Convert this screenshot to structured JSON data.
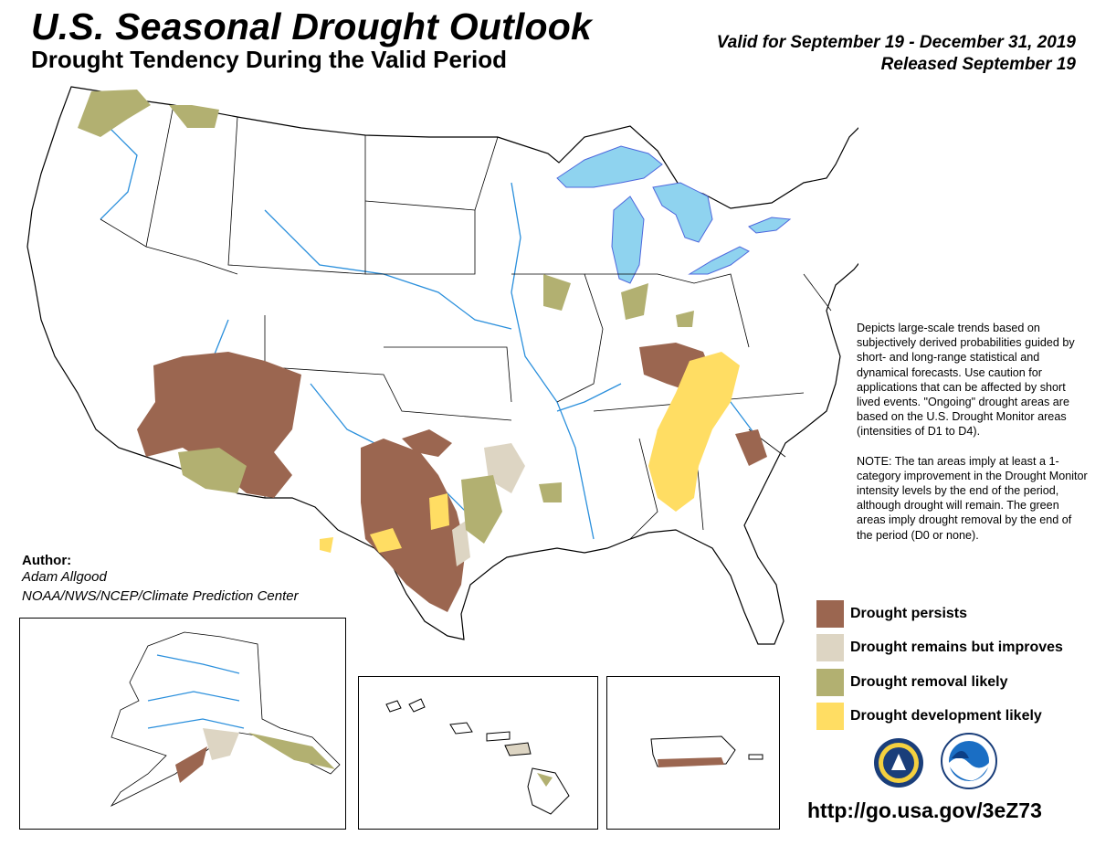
{
  "header": {
    "title": "U.S. Seasonal Drought Outlook",
    "subtitle": "Drought Tendency During the Valid Period",
    "valid": "Valid for September 19 - December 31, 2019",
    "released": "Released September 19"
  },
  "description": {
    "p1": "Depicts large-scale trends based on subjectively derived probabilities guided by short- and long-range statistical and dynamical forecasts. Use caution for applications that can be affected by short lived events. \"Ongoing\" drought areas are based on the U.S. Drought Monitor areas (intensities of D1 to D4).",
    "p2": "NOTE: The tan areas imply at least a 1-category improvement in the Drought Monitor intensity levels by the end of the period, although drought will remain. The green areas imply drought removal by the end of the period (D0 or none)."
  },
  "legend": [
    {
      "label": "Drought persists",
      "color": "#9b6650"
    },
    {
      "label": "Drought remains but improves",
      "color": "#ddd5c3"
    },
    {
      "label": "Drought removal likely",
      "color": "#b2b071"
    },
    {
      "label": "Drought development likely",
      "color": "#ffdd63"
    }
  ],
  "author": {
    "label": "Author:",
    "name": "Adam Allgood",
    "org": "NOAA/NWS/NCEP/Climate Prediction Center"
  },
  "url": "http://go.usa.gov/3eZ73",
  "colors": {
    "water": "#8fd3ef",
    "river": "#2a8fdc",
    "lake": "#4d67dd",
    "border": "#000000"
  },
  "logos": [
    "doc-seal-icon",
    "noaa-logo-icon"
  ]
}
